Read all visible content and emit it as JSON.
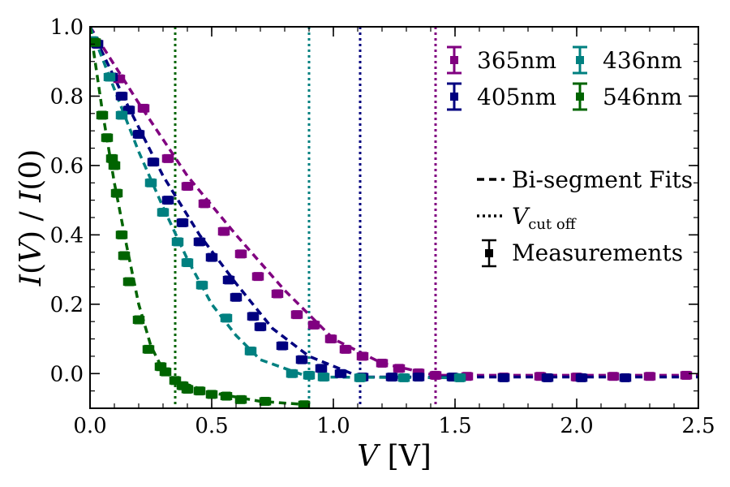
{
  "chart_data": {
    "type": "scatter",
    "xlabel": {
      "italic": "V",
      "unit": " [V]"
    },
    "ylabel": {
      "italic1": "I",
      "paren1": "(",
      "var1": "V",
      "close1": ")",
      "slash": " / ",
      "italic2": "I",
      "paren2": "(0)"
    },
    "xlim": [
      0.0,
      2.5
    ],
    "ylim": [
      -0.1,
      1.0
    ],
    "x_ticks": [
      "0.0",
      "0.5",
      "1.0",
      "1.5",
      "2.0",
      "2.5"
    ],
    "y_ticks": [
      "0.0",
      "0.2",
      "0.4",
      "0.6",
      "0.8",
      "1.0"
    ],
    "x_tick_values": [
      0.0,
      0.5,
      1.0,
      1.5,
      2.0,
      2.5
    ],
    "y_tick_values": [
      0.0,
      0.2,
      0.4,
      0.6,
      0.8,
      1.0
    ],
    "series": [
      {
        "name": "365nm",
        "color": "#800080",
        "cutoff": 1.42,
        "points": [
          [
            0.03,
            0.95
          ],
          [
            0.12,
            0.85
          ],
          [
            0.22,
            0.765
          ],
          [
            0.32,
            0.62
          ],
          [
            0.4,
            0.54
          ],
          [
            0.47,
            0.49
          ],
          [
            0.55,
            0.41
          ],
          [
            0.62,
            0.345
          ],
          [
            0.69,
            0.28
          ],
          [
            0.77,
            0.23
          ],
          [
            0.85,
            0.17
          ],
          [
            0.92,
            0.14
          ],
          [
            0.99,
            0.1
          ],
          [
            1.05,
            0.07
          ],
          [
            1.12,
            0.05
          ],
          [
            1.2,
            0.03
          ],
          [
            1.27,
            0.015
          ],
          [
            1.35,
            0.002
          ],
          [
            1.42,
            -0.005
          ],
          [
            1.55,
            -0.008
          ],
          [
            1.7,
            -0.01
          ],
          [
            1.85,
            -0.008
          ],
          [
            2.0,
            -0.01
          ],
          [
            2.15,
            -0.008
          ],
          [
            2.3,
            -0.008
          ],
          [
            2.45,
            -0.005
          ]
        ],
        "fit": [
          [
            0.0,
            1.0
          ],
          [
            0.2,
            0.78
          ],
          [
            0.4,
            0.57
          ],
          [
            0.6,
            0.4
          ],
          [
            0.8,
            0.24
          ],
          [
            1.0,
            0.1
          ],
          [
            1.2,
            0.03
          ],
          [
            1.42,
            -0.005
          ],
          [
            2.5,
            -0.005
          ]
        ]
      },
      {
        "name": "405nm",
        "color": "#00007f",
        "cutoff": 1.11,
        "points": [
          [
            0.03,
            0.95
          ],
          [
            0.09,
            0.855
          ],
          [
            0.13,
            0.8
          ],
          [
            0.16,
            0.76
          ],
          [
            0.2,
            0.69
          ],
          [
            0.26,
            0.61
          ],
          [
            0.32,
            0.5
          ],
          [
            0.38,
            0.435
          ],
          [
            0.45,
            0.38
          ],
          [
            0.5,
            0.335
          ],
          [
            0.57,
            0.27
          ],
          [
            0.6,
            0.22
          ],
          [
            0.67,
            0.165
          ],
          [
            0.7,
            0.135
          ],
          [
            0.79,
            0.08
          ],
          [
            0.87,
            0.04
          ],
          [
            0.95,
            0.015
          ],
          [
            1.03,
            0.0
          ],
          [
            1.12,
            -0.01
          ],
          [
            1.24,
            -0.01
          ],
          [
            1.35,
            -0.01
          ],
          [
            1.49,
            -0.01
          ],
          [
            1.7,
            -0.012
          ],
          [
            1.88,
            -0.012
          ],
          [
            2.02,
            -0.012
          ],
          [
            2.2,
            -0.012
          ]
        ],
        "fit": [
          [
            0.0,
            1.0
          ],
          [
            0.15,
            0.78
          ],
          [
            0.3,
            0.57
          ],
          [
            0.45,
            0.4
          ],
          [
            0.6,
            0.26
          ],
          [
            0.75,
            0.13
          ],
          [
            0.9,
            0.05
          ],
          [
            1.11,
            -0.01
          ],
          [
            2.5,
            -0.01
          ]
        ]
      },
      {
        "name": "436nm",
        "color": "#008080",
        "cutoff": 0.9,
        "points": [
          [
            0.01,
            0.96
          ],
          [
            0.08,
            0.855
          ],
          [
            0.13,
            0.745
          ],
          [
            0.25,
            0.55
          ],
          [
            0.3,
            0.465
          ],
          [
            0.36,
            0.38
          ],
          [
            0.4,
            0.32
          ],
          [
            0.46,
            0.255
          ],
          [
            0.56,
            0.16
          ],
          [
            0.66,
            0.065
          ],
          [
            0.83,
            0.0
          ],
          [
            0.9,
            -0.005
          ],
          [
            0.96,
            -0.01
          ],
          [
            1.11,
            -0.012
          ],
          [
            1.29,
            -0.012
          ],
          [
            1.52,
            -0.012
          ]
        ],
        "fit": [
          [
            0.0,
            1.0
          ],
          [
            0.1,
            0.82
          ],
          [
            0.2,
            0.64
          ],
          [
            0.3,
            0.48
          ],
          [
            0.4,
            0.33
          ],
          [
            0.5,
            0.2
          ],
          [
            0.6,
            0.11
          ],
          [
            0.7,
            0.04
          ],
          [
            0.9,
            -0.01
          ],
          [
            1.52,
            -0.012
          ]
        ]
      },
      {
        "name": "546nm",
        "color": "#006400",
        "cutoff": 0.35,
        "points": [
          [
            0.02,
            0.955
          ],
          [
            0.05,
            0.745
          ],
          [
            0.07,
            0.68
          ],
          [
            0.1,
            0.6
          ],
          [
            0.09,
            0.62
          ],
          [
            0.11,
            0.52
          ],
          [
            0.13,
            0.4
          ],
          [
            0.14,
            0.34
          ],
          [
            0.16,
            0.265
          ],
          [
            0.2,
            0.155
          ],
          [
            0.24,
            0.07
          ],
          [
            0.29,
            0.02
          ],
          [
            0.31,
            0.005
          ],
          [
            0.35,
            -0.02
          ],
          [
            0.38,
            -0.035
          ],
          [
            0.4,
            -0.045
          ],
          [
            0.45,
            -0.05
          ],
          [
            0.5,
            -0.06
          ],
          [
            0.56,
            -0.065
          ],
          [
            0.62,
            -0.075
          ],
          [
            0.72,
            -0.08
          ],
          [
            0.88,
            -0.09
          ]
        ],
        "fit": [
          [
            0.0,
            1.0
          ],
          [
            0.05,
            0.76
          ],
          [
            0.1,
            0.55
          ],
          [
            0.15,
            0.37
          ],
          [
            0.2,
            0.2
          ],
          [
            0.25,
            0.08
          ],
          [
            0.3,
            0.01
          ],
          [
            0.35,
            -0.02
          ],
          [
            0.5,
            -0.055
          ],
          [
            0.7,
            -0.08
          ],
          [
            0.9,
            -0.09
          ]
        ]
      }
    ],
    "legend_series": [
      "365nm",
      "436nm",
      "405nm",
      "546nm"
    ],
    "legend_styles": [
      {
        "label": "Bi-segment Fits",
        "style": "dashed"
      },
      {
        "label_italic": "V",
        "label_sub": "cut off",
        "style": "dotted"
      },
      {
        "label": "Measurements",
        "style": "errorbar"
      }
    ],
    "legend_placement": "top-right",
    "grid": false
  }
}
